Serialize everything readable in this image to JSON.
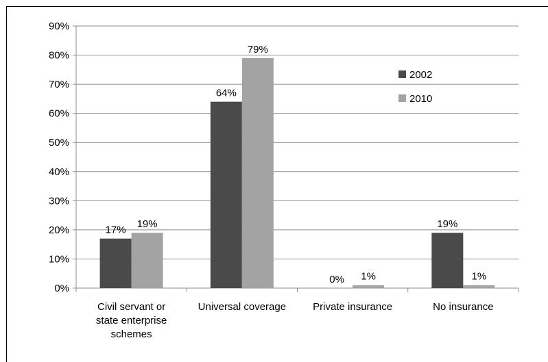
{
  "chart_data": {
    "type": "bar",
    "categories": [
      [
        "Civil servant or",
        "state enterprise",
        "schemes"
      ],
      [
        "Universal coverage"
      ],
      [
        "Private insurance"
      ],
      [
        "No insurance"
      ]
    ],
    "series": [
      {
        "name": "2002",
        "color": "#4a4a4a",
        "values": [
          17,
          64,
          0,
          19
        ],
        "labels": [
          "17%",
          "64%",
          "0%",
          "19%"
        ]
      },
      {
        "name": "2010",
        "color": "#a3a3a3",
        "values": [
          19,
          79,
          1,
          1
        ],
        "labels": [
          "19%",
          "79%",
          "1%",
          "1%"
        ]
      }
    ],
    "ylim": [
      0,
      90
    ],
    "yticks": [
      "0%",
      "10%",
      "20%",
      "30%",
      "40%",
      "50%",
      "60%",
      "70%",
      "80%",
      "90%"
    ],
    "grid": true,
    "legend_position": "top-right"
  }
}
